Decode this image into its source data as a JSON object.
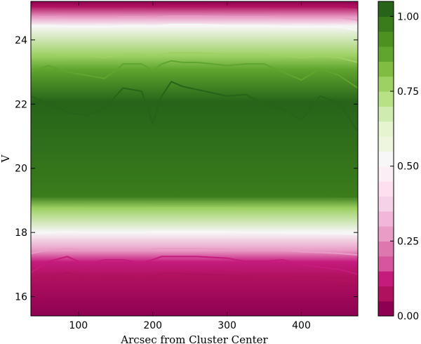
{
  "chart_data": {
    "type": "filled-contour",
    "title": "",
    "xlabel": "Arcsec from Cluster Center",
    "ylabel": "V",
    "xlim": [
      36,
      476
    ],
    "ylim": [
      15.4,
      25.2
    ],
    "xticks": [
      100,
      200,
      300,
      400
    ],
    "yticks": [
      16,
      18,
      20,
      22,
      24
    ],
    "grid": false,
    "colormap": "PiYG",
    "levels": [
      0.0,
      0.05,
      0.1,
      0.15,
      0.2,
      0.25,
      0.3,
      0.35,
      0.4,
      0.45,
      0.5,
      0.55,
      0.6,
      0.65,
      0.7,
      0.75,
      0.8,
      0.85,
      0.9,
      0.95,
      1.0,
      1.05
    ],
    "level_colors": [
      "#8e0152",
      "#b0115f",
      "#c51b7d",
      "#d6569e",
      "#de77ae",
      "#e99dc6",
      "#f1b6da",
      "#f6d2e7",
      "#fde0ef",
      "#fbeff5",
      "#f7f7f7",
      "#eef6e0",
      "#e6f5d0",
      "#cfebb0",
      "#b8e186",
      "#9ed164",
      "#7fbc41",
      "#5fa52e",
      "#4d9221",
      "#3a7c1c",
      "#276419"
    ],
    "colorbar": {
      "ticks": [
        0.0,
        0.25,
        0.5,
        0.75,
        1.0
      ],
      "tick_labels": [
        "0.00",
        "0.25",
        "0.50",
        "0.75",
        "1.00"
      ]
    },
    "contour_boundaries": {
      "x": [
        36,
        60,
        85,
        110,
        135,
        150,
        160,
        185,
        200,
        212,
        225,
        240,
        260,
        300,
        325,
        350,
        375,
        400,
        425,
        450,
        476
      ],
      "levels": [
        {
          "value": 0.05,
          "y": [
            16.45,
            16.6,
            16.75,
            16.6,
            16.65,
            16.65,
            16.65,
            16.62,
            16.65,
            16.72,
            16.72,
            16.72,
            16.7,
            16.68,
            16.65,
            16.6,
            16.58,
            16.55,
            16.55,
            16.5,
            16.45
          ]
        },
        {
          "value": 0.1,
          "y": [
            16.75,
            17.1,
            17.25,
            17.0,
            17.15,
            17.15,
            17.15,
            17.05,
            17.15,
            17.25,
            17.25,
            17.25,
            17.25,
            17.2,
            17.1,
            17.1,
            17.15,
            17.0,
            16.92,
            16.85,
            16.7
          ]
        },
        {
          "value": 0.25,
          "y": [
            17.35,
            17.45,
            17.5,
            17.45,
            17.45,
            17.45,
            17.45,
            17.45,
            17.48,
            17.5,
            17.5,
            17.5,
            17.5,
            17.48,
            17.45,
            17.45,
            17.45,
            17.4,
            17.38,
            17.35,
            17.3
          ]
        },
        {
          "value": 0.5,
          "y": [
            17.95,
            18.0,
            18.02,
            18.0,
            18.0,
            18.0,
            18.0,
            18.0,
            18.02,
            18.03,
            18.03,
            18.03,
            18.03,
            18.02,
            18.0,
            18.0,
            18.0,
            17.98,
            17.97,
            17.96,
            17.95
          ]
        },
        {
          "value": 0.75,
          "y": [
            18.72,
            18.75,
            18.76,
            18.75,
            18.75,
            18.75,
            18.75,
            18.75,
            18.76,
            18.76,
            18.76,
            18.76,
            18.76,
            18.76,
            18.75,
            18.75,
            18.75,
            18.74,
            18.74,
            18.73,
            18.72
          ]
        },
        {
          "value": 0.95,
          "y": [
            19.12,
            19.13,
            19.13,
            19.13,
            19.13,
            19.13,
            19.13,
            19.13,
            19.13,
            19.13,
            19.13,
            19.13,
            19.13,
            19.13,
            19.13,
            19.13,
            19.13,
            19.13,
            19.13,
            19.12,
            19.12
          ]
        },
        {
          "value": 1.0,
          "y": [
            22.25,
            22.0,
            21.75,
            21.65,
            21.85,
            22.25,
            22.5,
            22.4,
            21.4,
            22.25,
            22.7,
            22.55,
            22.45,
            22.25,
            22.3,
            22.0,
            21.85,
            21.5,
            22.25,
            22.05,
            21.15
          ]
        },
        {
          "value": 0.85,
          "y": [
            23.0,
            23.2,
            23.0,
            22.9,
            22.8,
            23.05,
            23.25,
            23.25,
            23.05,
            23.25,
            23.35,
            23.3,
            23.3,
            23.2,
            23.25,
            23.25,
            23.0,
            22.75,
            23.1,
            22.9,
            22.5
          ]
        },
        {
          "value": 0.75,
          "y": [
            23.55,
            23.55,
            23.5,
            23.5,
            23.45,
            23.5,
            23.55,
            23.55,
            23.5,
            23.55,
            23.6,
            23.6,
            23.6,
            23.55,
            23.55,
            23.55,
            23.5,
            23.45,
            23.5,
            23.45,
            23.3
          ]
        },
        {
          "value": 0.5,
          "y": [
            24.45,
            24.45,
            24.42,
            24.42,
            24.4,
            24.42,
            24.45,
            24.45,
            24.42,
            24.45,
            24.48,
            24.48,
            24.48,
            24.45,
            24.45,
            24.45,
            24.42,
            24.4,
            24.42,
            24.4,
            24.3
          ]
        },
        {
          "value": 0.25,
          "y": [
            24.7,
            24.72,
            24.7,
            24.7,
            24.7,
            24.7,
            24.72,
            24.72,
            24.7,
            24.72,
            24.74,
            24.74,
            24.74,
            24.72,
            24.72,
            24.72,
            24.7,
            24.7,
            24.7,
            24.7,
            24.62
          ]
        },
        {
          "value": 0.05,
          "y": [
            25.05,
            25.05,
            25.04,
            25.04,
            25.04,
            25.04,
            25.05,
            25.05,
            25.04,
            25.05,
            25.06,
            25.06,
            25.06,
            25.05,
            25.05,
            25.05,
            25.04,
            25.04,
            25.04,
            25.04,
            25.0
          ]
        }
      ]
    }
  }
}
